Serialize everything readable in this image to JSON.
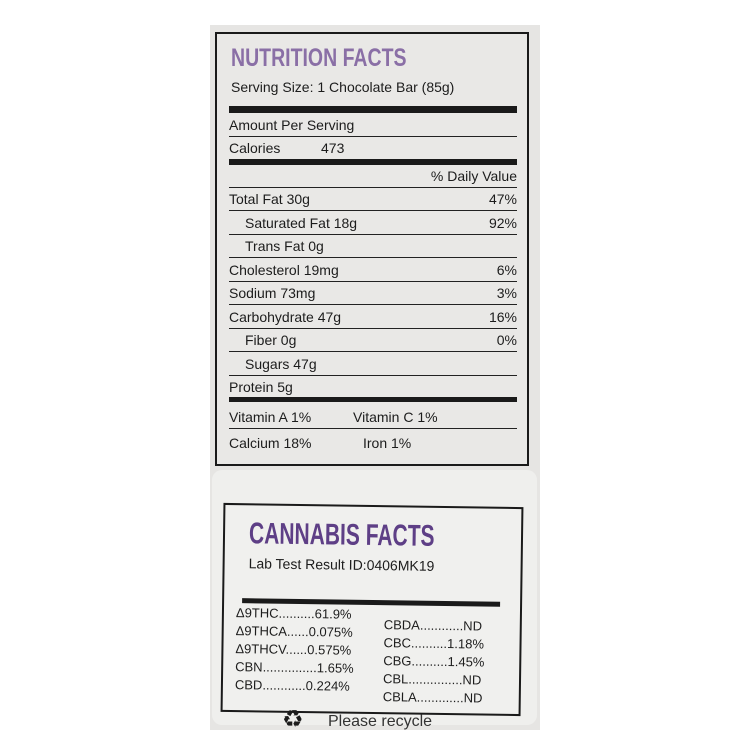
{
  "nutrition": {
    "title": "NUTRITION FACTS",
    "serving_size": "Serving Size: 1 Chocolate Bar (85g)",
    "amount_per_serving": "Amount Per Serving",
    "calories_label": "Calories",
    "calories_value": "473",
    "daily_value_header": "% Daily Value",
    "rows": [
      {
        "label": "Total Fat 30g",
        "value": "47%"
      },
      {
        "label": "Saturated Fat 18g",
        "value": "92%"
      },
      {
        "label": "Trans Fat 0g",
        "value": ""
      },
      {
        "label": "Cholesterol  19mg",
        "value": "6%"
      },
      {
        "label": "Sodium 73mg",
        "value": "3%"
      },
      {
        "label": "Carbohydrate 47g",
        "value": "16%"
      },
      {
        "label": "Fiber 0g",
        "value": "0%"
      },
      {
        "label": "Sugars 47g",
        "value": ""
      },
      {
        "label": "Protein 5g",
        "value": ""
      }
    ],
    "vitamin_a": "Vitamin A 1%",
    "vitamin_c": "Vitamin C 1%",
    "calcium": "Calcium  18%",
    "iron": "Iron 1%"
  },
  "cannabis": {
    "title": "CANNABIS FACTS",
    "lab_result": "Lab Test Result ID:0406MK19",
    "left": [
      "Δ9THC..........61.9%",
      "Δ9THCA......0.075%",
      "Δ9THCV......0.575%",
      "CBN...............1.65%",
      "CBD............0.224%"
    ],
    "right": [
      "CBDA............ND",
      "CBC..........1.18%",
      "CBG..........1.45%",
      "CBL...............ND",
      "CBLA.............ND"
    ]
  },
  "footer": {
    "recycle_icon": "recycle-icon",
    "text": "Please recycle"
  },
  "colors": {
    "nutrition_title": "#8a6fa6",
    "cannabis_title": "#5e3f86"
  }
}
